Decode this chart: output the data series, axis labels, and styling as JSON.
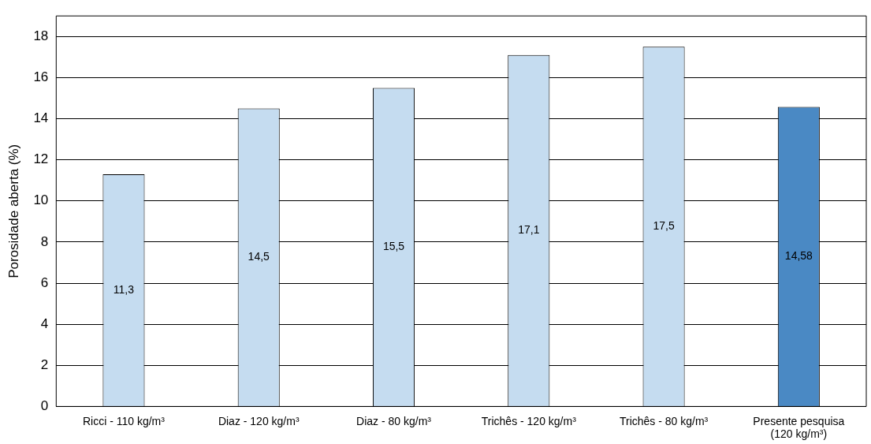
{
  "chart_data": {
    "type": "bar",
    "ylabel": "Porosidade aberta (%)",
    "categories": [
      "Ricci - 110 kg/m³",
      "Diaz - 120 kg/m³",
      "Diaz - 80 kg/m³",
      "Trichês - 120 kg/m³",
      "Trichês - 80 kg/m³",
      "Presente pesquisa\n(120 kg/m³)"
    ],
    "values": [
      11.3,
      14.5,
      15.5,
      17.1,
      17.5,
      14.58
    ],
    "value_labels": [
      "11,3",
      "14,5",
      "15,5",
      "17,1",
      "17,5",
      "14,58"
    ],
    "colors": [
      "#c5dcf0",
      "#c5dcf0",
      "#c5dcf0",
      "#c5dcf0",
      "#c5dcf0",
      "#4a89c4"
    ],
    "ylim": [
      0,
      19
    ],
    "yticks": [
      0,
      2,
      4,
      6,
      8,
      10,
      12,
      14,
      16,
      18
    ],
    "grid": "y",
    "legend": false
  }
}
